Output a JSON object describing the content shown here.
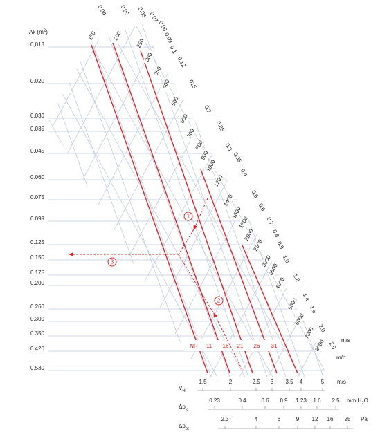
{
  "axis_title": {
    "text": "Ak (m",
    "sup": "2",
    "end": ")"
  },
  "ak_labels": [
    "0,013",
    "0.020",
    "0.030",
    "0.035",
    "0.045",
    "0.060",
    "0.075",
    "0.099",
    "0.125",
    "0.150",
    "0.175",
    "0,200",
    "0.260",
    "0.300",
    "0.350",
    "0.420",
    "0.530"
  ],
  "ms_labels": [
    "0.04",
    "0.05",
    "0.06",
    "0.07",
    "0.08",
    "0.09",
    "0.1",
    "0.12",
    "015",
    "0.2",
    "0.25",
    "0.3",
    "0.35",
    "0.4",
    "0.5",
    "0.6",
    "0.7",
    "0.8",
    "0.9",
    "1,0",
    "1.2",
    "1.4",
    "1.6",
    "2.0",
    "2.5"
  ],
  "ms_unit": "m/s",
  "mh_labels": [
    "150",
    "200",
    "250",
    "300",
    "350",
    "400",
    "500",
    "600",
    "700",
    "800",
    "900",
    "1000",
    "1200",
    "1400",
    "1600",
    "1800",
    "2000",
    "2500",
    "3000",
    "3500",
    "4000",
    "5000",
    "6000",
    "7000",
    "8000"
  ],
  "mh_unit": "m/h",
  "nr_labels": [
    "NR",
    "11",
    "16",
    "21",
    "26",
    "31"
  ],
  "annotations": [
    "1",
    "2",
    "3"
  ],
  "scales": [
    {
      "name": "V",
      "sub": "H",
      "values": [
        "1.5",
        "2",
        "2.5",
        "3",
        "3.5",
        "4",
        "5"
      ],
      "unit": [
        "m/s"
      ]
    },
    {
      "name": "Δp",
      "sub": "kt",
      "values": [
        "0.23",
        "0.4",
        "0.6",
        "0.9",
        "1.23",
        "1.6",
        "2.5"
      ],
      "unit": [
        "mm H",
        "2",
        "O"
      ]
    },
    {
      "name": "Δp",
      "sub": "pt",
      "values": [
        "2.3",
        "4",
        "6",
        "9",
        "12",
        "16",
        "25"
      ],
      "unit": [
        "Pa"
      ]
    }
  ]
}
